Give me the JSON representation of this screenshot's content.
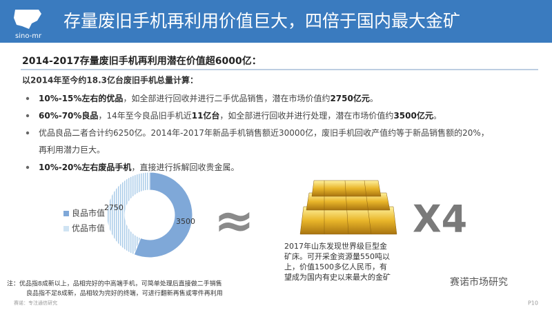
{
  "header": {
    "logo": "sino-mr",
    "title": "存量废旧手机再利用价值巨大，四倍于国内最大金矿"
  },
  "subtitle": "2014-2017存量废旧手机再利用潜在价值超6000亿：",
  "intro": "以2014年至今约18.3亿台废旧手机总量计算：",
  "bullets": [
    [
      {
        "text": "10%-15%左右的优品",
        "bold": true
      },
      {
        "text": "，如全部进行回收并进行二手优品销售，潜在市场价值约",
        "bold": false
      },
      {
        "text": "2750亿元",
        "bold": true
      },
      {
        "text": "。",
        "bold": false
      }
    ],
    [
      {
        "text": "60%-70%良品",
        "bold": true
      },
      {
        "text": "，14年至今良品旧手机近",
        "bold": false
      },
      {
        "text": "11亿台",
        "bold": true
      },
      {
        "text": "，如全部进行回收并进行处理，潜在市场价值约",
        "bold": false
      },
      {
        "text": "3500亿元",
        "bold": true
      },
      {
        "text": "。",
        "bold": false
      }
    ],
    [
      {
        "text": "优品良品二者合计约6250亿。2014年-2017年新品手机销售额近30000亿，废旧手机回收产值约等于新品销售额的20%，",
        "bold": false
      }
    ],
    [
      {
        "text": "10%-20%左右废品手机",
        "bold": true
      },
      {
        "text": "，直接进行拆解回收贵金属。",
        "bold": false
      }
    ]
  ],
  "bullet_continuation": "再利用潜力巨大。",
  "chart_data": {
    "type": "donut",
    "categories": [
      "良品市值",
      "优品市值"
    ],
    "values": [
      3500,
      2750
    ],
    "colors": [
      "#7fa8d8",
      "#cfe3f3"
    ]
  },
  "multiplier": "X4",
  "caption": [
    "2017年山东发现世界级巨型金",
    "矿床。可开采金资源量550吨以",
    "上，价值1500多亿人民币，有",
    "望成为国内有史以来最大的金矿"
  ],
  "notes": [
    "注：优品指8成新以上，品相完好的中高端手机，可简单处理后直接做二手销售",
    "良品指不足8成新，品相较为完好的终端，可进行翻新再售或零件再利用"
  ],
  "footer": {
    "source": "赛诺：专注通信研究",
    "wechat": "赛诺市场研究",
    "page": "P10"
  }
}
